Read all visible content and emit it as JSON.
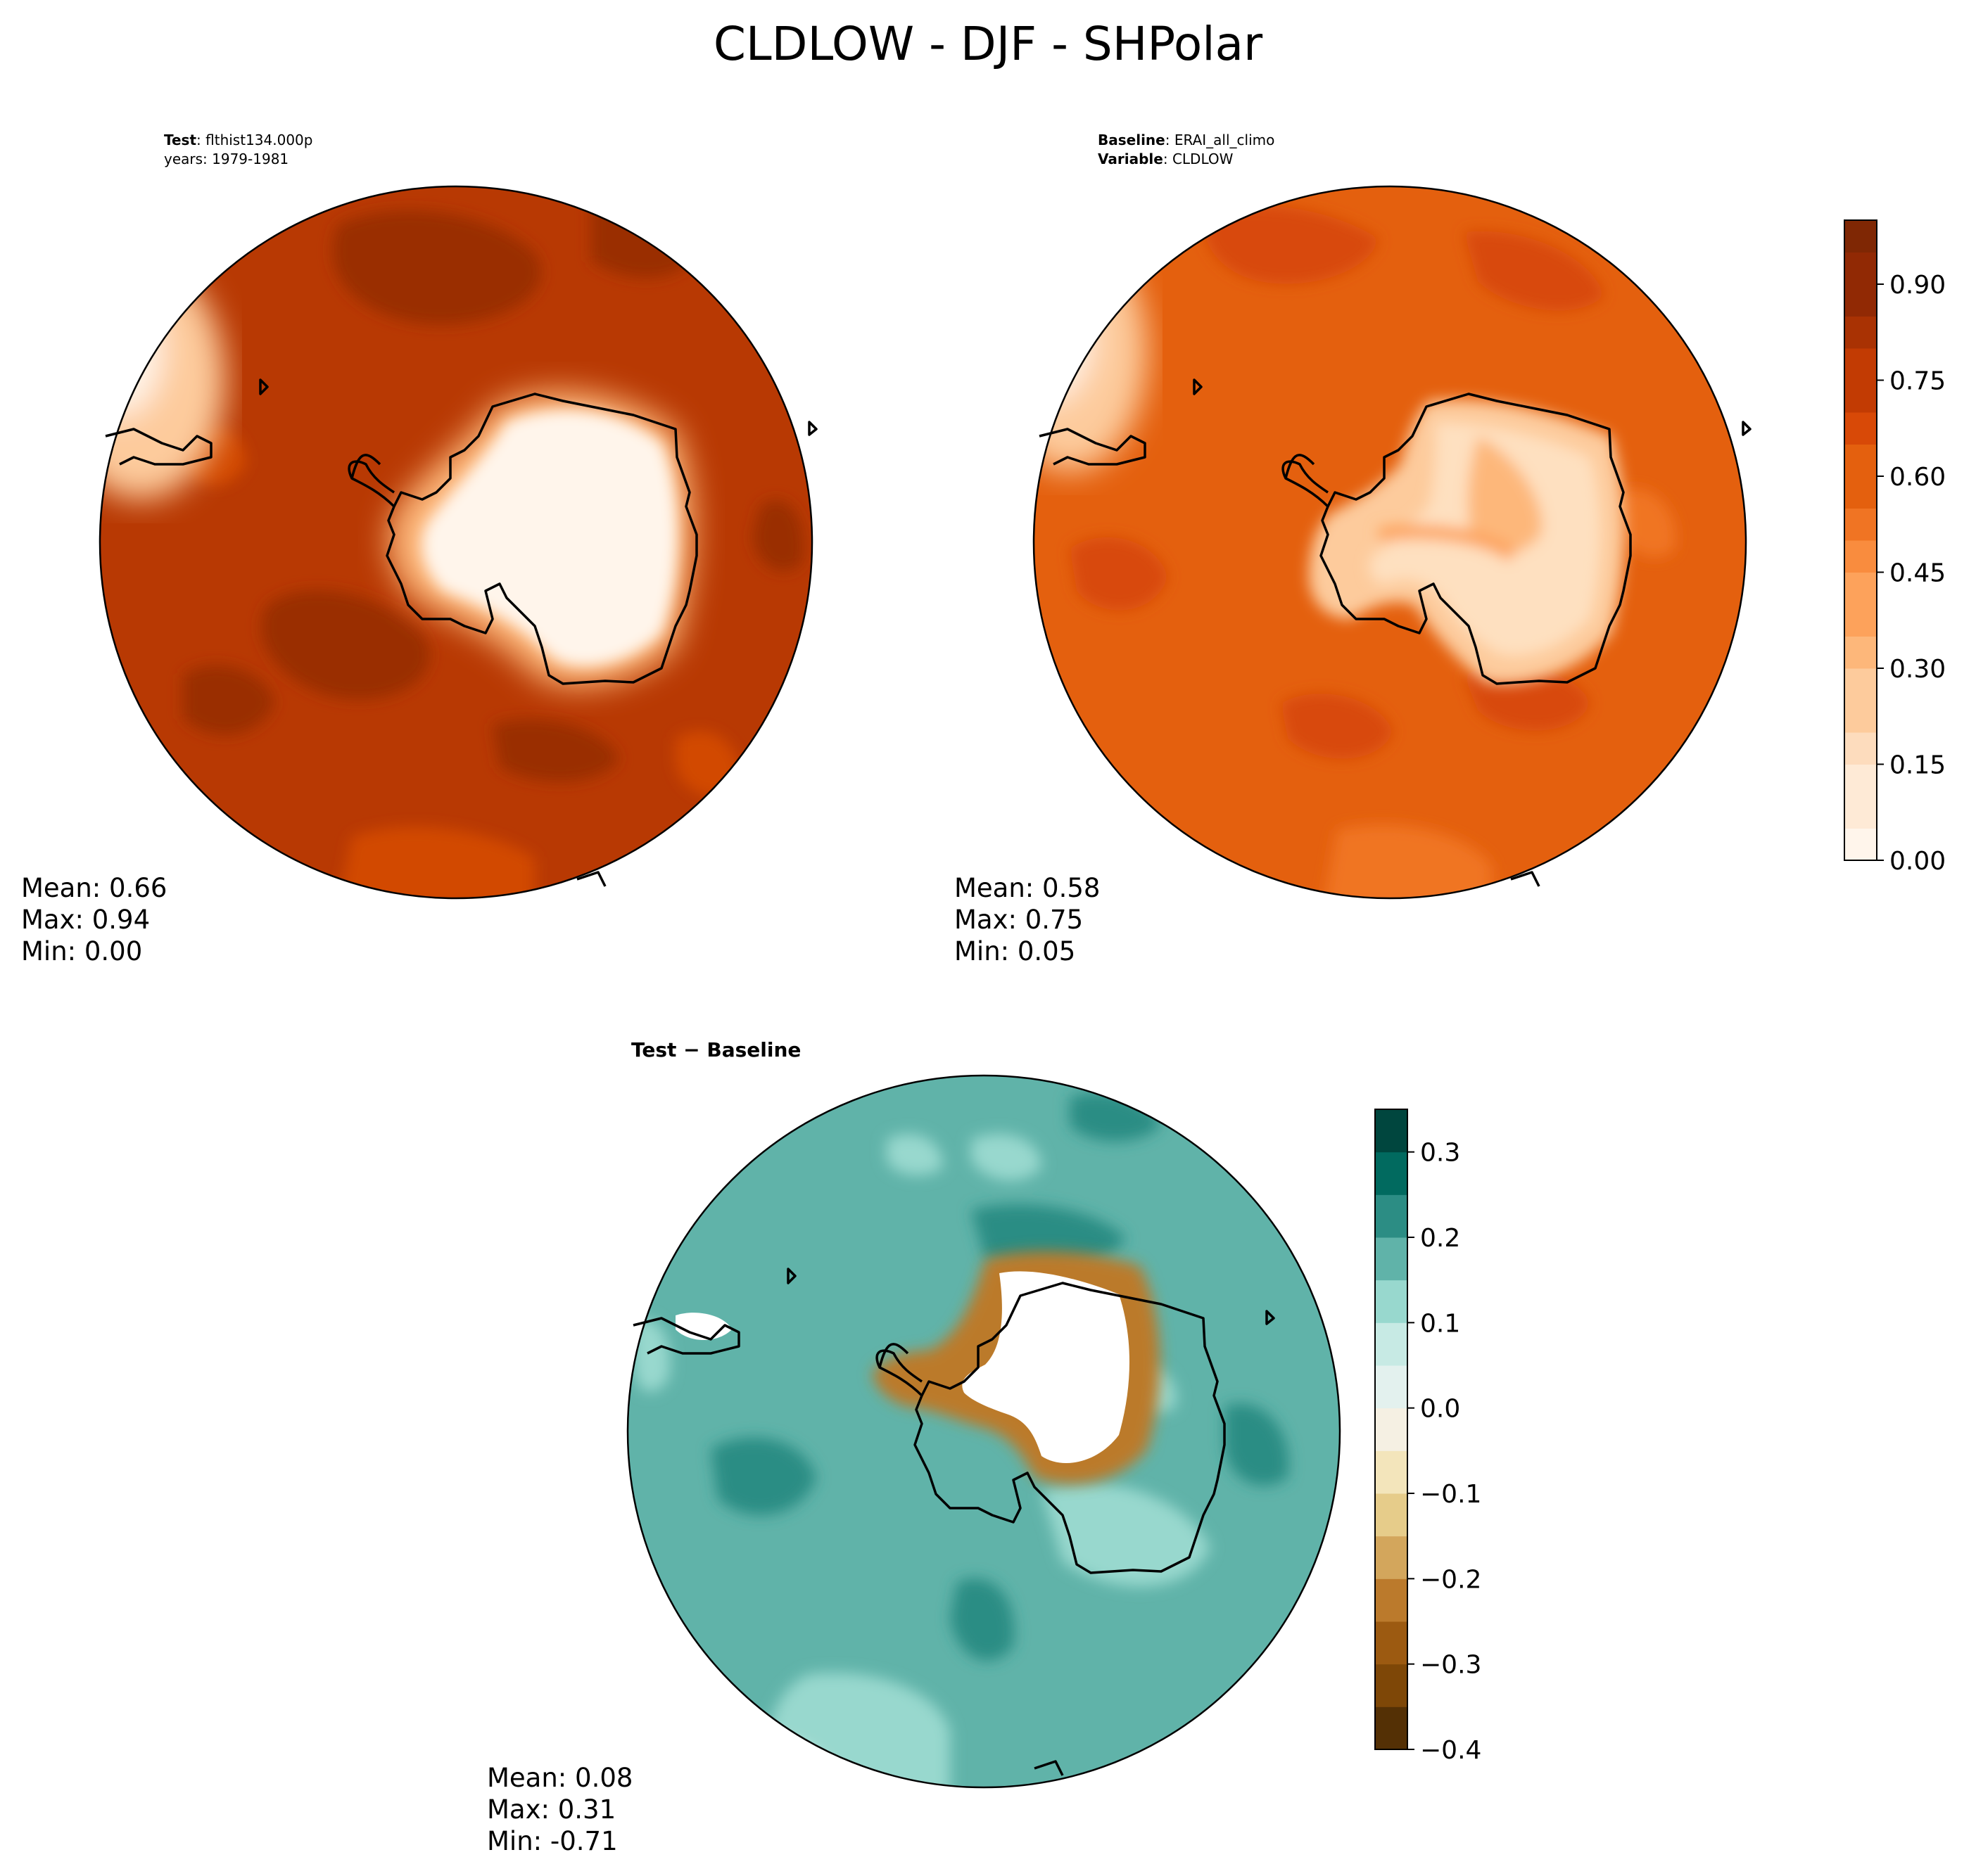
{
  "title": "CLDLOW - DJF - SHPolar",
  "panels": {
    "test": {
      "label_key": "Test",
      "label_value": "flthist134.000p",
      "years_line": "years: 1979-1981",
      "stats": {
        "mean": "Mean:  0.66",
        "max": "Max:  0.94",
        "min": "Min:  0.00"
      }
    },
    "baseline": {
      "label_key": "Baseline",
      "label_value": "ERAI_all_climo",
      "variable_key": "Variable",
      "variable_value": "CLDLOW",
      "stats": {
        "mean": "Mean:  0.58",
        "max": "Max:  0.75",
        "min": "Min:  0.05"
      }
    },
    "diff": {
      "title": "Test − Baseline",
      "stats": {
        "mean": "Mean:  0.08",
        "max": "Max:  0.31",
        "min": "Min: -0.71"
      }
    }
  },
  "colors": {
    "oranges": [
      "#fff5eb",
      "#feead6",
      "#fddcbd",
      "#fdcb9c",
      "#fdb77a",
      "#fda25b",
      "#f98c3e",
      "#f07423",
      "#e4600e",
      "#d84907",
      "#c23b03",
      "#a93203",
      "#912904",
      "#7f2704"
    ],
    "brbg": [
      "#543005",
      "#7e4707",
      "#9c5a11",
      "#bb7a2c",
      "#d3a65c",
      "#e6cc8a",
      "#f3e5bb",
      "#f5f0e3",
      "#e3f1ee",
      "#c7eae4",
      "#98d8ce",
      "#60b3a9",
      "#2c8d84",
      "#016a5f",
      "#00463e"
    ],
    "coast": "#000000"
  },
  "chart_data": [
    {
      "type": "heatmap",
      "name_hint": "test",
      "projection": "south polar stereographic",
      "stats": {
        "mean": 0.66,
        "max": 0.94,
        "min": 0.0
      },
      "colorbar": null
    },
    {
      "type": "heatmap",
      "name_hint": "baseline",
      "projection": "south polar stereographic",
      "stats": {
        "mean": 0.58,
        "max": 0.75,
        "min": 0.05
      },
      "colorbar": {
        "range": [
          0.0,
          1.0
        ],
        "levels": 20,
        "tick_labels": [
          "0.00",
          "0.15",
          "0.30",
          "0.45",
          "0.60",
          "0.75",
          "0.90"
        ],
        "tick_values": [
          0.0,
          0.15,
          0.3,
          0.45,
          0.6,
          0.75,
          0.9
        ],
        "colormap": "Oranges"
      }
    },
    {
      "type": "heatmap",
      "name_hint": "difference",
      "projection": "south polar stereographic",
      "stats": {
        "mean": 0.08,
        "max": 0.31,
        "min": -0.71
      },
      "colorbar": {
        "range": [
          -0.4,
          0.35
        ],
        "tick_labels": [
          "0.3",
          "0.2",
          "0.1",
          "0.0",
          "−0.1",
          "−0.2",
          "−0.3",
          "−0.4"
        ],
        "tick_values": [
          0.3,
          0.2,
          0.1,
          0.0,
          -0.1,
          -0.2,
          -0.3,
          -0.4
        ],
        "colormap": "BrBG"
      }
    }
  ]
}
